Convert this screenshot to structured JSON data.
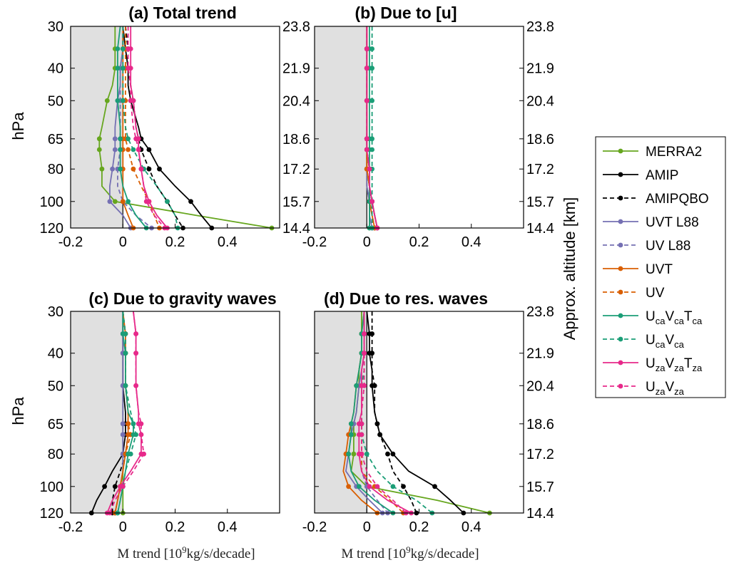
{
  "colors": {
    "MERRA2": "#66a61e",
    "AMIP": "#000000",
    "AMIPQBO": "#000000",
    "UVT L88": "#7570b3",
    "UV L88": "#7570b3",
    "UVT": "#d95f02",
    "UV": "#d95f02",
    "UcaVcaTca": "#1b9e77",
    "UcaVca": "#1b9e77",
    "UzaVzaTza": "#e7298a",
    "UzaVza": "#e7298a",
    "shade": "#e0e0e0"
  },
  "legend": [
    {
      "key": "MERRA2",
      "label": "MERRA2",
      "dashed": false
    },
    {
      "key": "AMIP",
      "label": "AMIP",
      "dashed": false
    },
    {
      "key": "AMIPQBO",
      "label": "AMIPQBO",
      "dashed": true
    },
    {
      "key": "UVT L88",
      "label": "UVT L88",
      "dashed": false
    },
    {
      "key": "UV L88",
      "label": "UV L88",
      "dashed": true
    },
    {
      "key": "UVT",
      "label": "UVT",
      "dashed": false
    },
    {
      "key": "UV",
      "label": "UV",
      "dashed": true
    },
    {
      "key": "UcaVcaTca",
      "label": "U",
      "sub": [
        [
          "ca",
          "V"
        ],
        [
          "ca",
          "T"
        ],
        [
          "ca",
          ""
        ]
      ],
      "dashed": false
    },
    {
      "key": "UcaVca",
      "label": "U",
      "sub": [
        [
          "ca",
          "V"
        ],
        [
          "ca",
          ""
        ]
      ],
      "dashed": true
    },
    {
      "key": "UzaVzaTza",
      "label": "U",
      "sub": [
        [
          "za",
          "V"
        ],
        [
          "za",
          "T"
        ],
        [
          "za",
          ""
        ]
      ],
      "dashed": false
    },
    {
      "key": "UzaVza",
      "label": "U",
      "sub": [
        [
          "za",
          "V"
        ],
        [
          "za",
          ""
        ]
      ],
      "dashed": true
    }
  ],
  "right_axis_label": "Approx. altitude [km]",
  "left_axis_label": "hPa",
  "xlabel_pre": "M trend [10",
  "xlabel_sup": "9",
  "xlabel_post": "kg/s/decade]",
  "chart_data": [
    {
      "type": "line",
      "title": "(a) Total trend",
      "xlim": [
        -0.2,
        0.6
      ],
      "ylim": [
        30,
        120
      ],
      "xticks": [
        "-0.2",
        "0",
        "0.2",
        "0.4"
      ],
      "yticks": [
        "30",
        "40",
        "50",
        "65",
        "80",
        "100",
        "120"
      ],
      "alt_ticks": [
        "23.8",
        "21.9",
        "20.4",
        "18.6",
        "17.2",
        "15.7",
        "14.4"
      ],
      "pressure": [
        30,
        35,
        40,
        45,
        50,
        60,
        65,
        70,
        80,
        90,
        100,
        110,
        120
      ],
      "series": [
        {
          "name": "MERRA2",
          "values": [
            -0.03,
            -0.03,
            -0.03,
            -0.04,
            -0.06,
            -0.08,
            -0.09,
            -0.09,
            -0.08,
            -0.08,
            -0.03,
            0.28,
            0.57
          ]
        },
        {
          "name": "AMIP",
          "values": [
            0.0,
            0.01,
            0.02,
            0.02,
            0.03,
            0.06,
            0.07,
            0.1,
            0.14,
            0.2,
            0.26,
            0.3,
            0.34
          ]
        },
        {
          "name": "AMIPQBO",
          "values": [
            0.01,
            0.02,
            0.02,
            0.03,
            0.04,
            0.05,
            0.06,
            0.07,
            0.1,
            0.13,
            0.17,
            0.2,
            0.23
          ]
        },
        {
          "name": "UVT L88",
          "values": [
            0.0,
            0.0,
            -0.01,
            -0.01,
            -0.02,
            -0.03,
            -0.03,
            -0.03,
            -0.04,
            -0.05,
            -0.05,
            0.0,
            0.03
          ]
        },
        {
          "name": "UV L88",
          "values": [
            0.0,
            0.0,
            -0.01,
            -0.01,
            -0.01,
            -0.01,
            -0.01,
            -0.01,
            -0.02,
            -0.02,
            0.0,
            0.05,
            0.11
          ]
        },
        {
          "name": "UVT",
          "values": [
            0.0,
            0.0,
            0.0,
            0.0,
            0.0,
            0.0,
            0.0,
            0.0,
            0.0,
            0.0,
            0.0,
            0.02,
            0.04
          ]
        },
        {
          "name": "UV",
          "values": [
            0.01,
            0.01,
            0.01,
            0.01,
            0.01,
            0.01,
            0.01,
            0.02,
            0.04,
            0.07,
            0.1,
            0.12,
            0.14
          ]
        },
        {
          "name": "UcaVcaTca",
          "values": [
            -0.01,
            -0.02,
            -0.02,
            -0.02,
            -0.02,
            -0.01,
            -0.01,
            -0.01,
            -0.01,
            0.0,
            0.02,
            0.05,
            0.09
          ]
        },
        {
          "name": "UcaVca",
          "values": [
            0.0,
            0.0,
            0.0,
            0.0,
            0.0,
            0.01,
            0.02,
            0.04,
            0.08,
            0.13,
            0.17,
            0.2,
            0.21
          ]
        },
        {
          "name": "UzaVzaTza",
          "values": [
            0.03,
            0.03,
            0.03,
            0.03,
            0.04,
            0.05,
            0.06,
            0.06,
            0.07,
            0.08,
            0.1,
            0.13,
            0.17
          ]
        },
        {
          "name": "UzaVza",
          "values": [
            0.02,
            0.02,
            0.02,
            0.03,
            0.03,
            0.04,
            0.05,
            0.06,
            0.07,
            0.08,
            0.09,
            0.12,
            0.16
          ]
        }
      ]
    },
    {
      "type": "line",
      "title": "(b) Due to [u]",
      "xlim": [
        -0.2,
        0.6
      ],
      "ylim": [
        30,
        120
      ],
      "xticks": [
        "-0.2",
        "0",
        "0.2",
        "0.4"
      ],
      "yticks": [
        "30",
        "40",
        "50",
        "65",
        "80",
        "100",
        "120"
      ],
      "alt_ticks": [
        "23.8",
        "21.9",
        "20.4",
        "18.6",
        "17.2",
        "15.7",
        "14.4"
      ],
      "pressure": [
        30,
        35,
        40,
        45,
        50,
        60,
        65,
        70,
        80,
        90,
        100,
        110,
        120
      ],
      "series": [
        {
          "name": "MERRA2",
          "values": [
            0.0,
            0.0,
            0.0,
            0.0,
            0.0,
            0.0,
            0.0,
            0.0,
            0.0,
            0.0,
            0.01,
            0.01,
            0.01
          ]
        },
        {
          "name": "AMIP",
          "values": [
            0.0,
            0.0,
            0.0,
            0.0,
            0.0,
            0.0,
            0.0,
            0.0,
            0.0,
            0.01,
            0.02,
            0.03,
            0.04
          ]
        },
        {
          "name": "AMIPQBO",
          "values": [
            0.0,
            0.0,
            0.0,
            0.0,
            0.0,
            0.0,
            0.0,
            0.0,
            0.01,
            0.01,
            0.02,
            0.02,
            0.03
          ]
        },
        {
          "name": "UVT L88",
          "values": [
            0.0,
            0.0,
            0.0,
            0.0,
            0.0,
            0.0,
            0.0,
            0.0,
            0.0,
            0.0,
            0.01,
            0.01,
            0.02
          ]
        },
        {
          "name": "UV L88",
          "values": [
            0.0,
            0.0,
            0.0,
            0.0,
            0.0,
            0.0,
            0.0,
            0.0,
            0.0,
            0.0,
            0.01,
            0.01,
            0.02
          ]
        },
        {
          "name": "UVT",
          "values": [
            0.0,
            0.0,
            0.0,
            0.0,
            0.0,
            0.0,
            0.0,
            0.0,
            0.0,
            0.01,
            0.01,
            0.02,
            0.03
          ]
        },
        {
          "name": "UV",
          "values": [
            0.0,
            0.0,
            0.0,
            0.0,
            0.0,
            0.0,
            0.0,
            0.0,
            0.0,
            0.01,
            0.01,
            0.02,
            0.03
          ]
        },
        {
          "name": "UcaVcaTca",
          "values": [
            0.01,
            0.01,
            0.01,
            0.01,
            0.01,
            0.01,
            0.01,
            0.01,
            0.01,
            0.01,
            0.01,
            0.01,
            0.01
          ]
        },
        {
          "name": "UcaVca",
          "values": [
            0.02,
            0.02,
            0.02,
            0.02,
            0.02,
            0.02,
            0.02,
            0.02,
            0.02,
            0.02,
            0.02,
            0.02,
            0.02
          ]
        },
        {
          "name": "UzaVzaTza",
          "values": [
            0.0,
            0.0,
            0.0,
            0.0,
            0.0,
            0.0,
            0.0,
            0.0,
            0.01,
            0.01,
            0.02,
            0.03,
            0.04
          ]
        },
        {
          "name": "UzaVza",
          "values": [
            0.0,
            0.0,
            0.0,
            0.0,
            0.0,
            0.0,
            0.0,
            0.0,
            0.01,
            0.01,
            0.02,
            0.03,
            0.04
          ]
        }
      ]
    },
    {
      "type": "line",
      "title": "(c) Due to gravity waves",
      "xlim": [
        -0.2,
        0.6
      ],
      "ylim": [
        30,
        120
      ],
      "xticks": [
        "-0.2",
        "0",
        "0.2",
        "0.4"
      ],
      "yticks": [
        "30",
        "40",
        "50",
        "65",
        "80",
        "100",
        "120"
      ],
      "alt_ticks": [],
      "pressure": [
        30,
        35,
        40,
        45,
        50,
        60,
        65,
        70,
        80,
        90,
        100,
        110,
        120
      ],
      "series": [
        {
          "name": "MERRA2",
          "values": [
            0.0,
            0.0,
            0.0,
            0.0,
            0.0,
            0.0,
            0.0,
            0.0,
            0.0,
            0.0,
            0.0,
            0.0,
            0.0
          ]
        },
        {
          "name": "AMIP",
          "values": [
            0.0,
            0.0,
            0.0,
            0.0,
            0.0,
            0.01,
            0.01,
            0.01,
            0.0,
            -0.04,
            -0.07,
            -0.1,
            -0.12
          ]
        },
        {
          "name": "AMIPQBO",
          "values": [
            0.0,
            0.01,
            0.01,
            0.01,
            0.01,
            0.02,
            0.02,
            0.02,
            0.01,
            -0.01,
            -0.03,
            -0.04,
            -0.04
          ]
        },
        {
          "name": "UVT L88",
          "values": [
            0.0,
            0.0,
            0.0,
            0.0,
            0.0,
            0.0,
            0.0,
            0.0,
            0.0,
            0.0,
            -0.01,
            -0.02,
            -0.03
          ]
        },
        {
          "name": "UV L88",
          "values": [
            0.0,
            0.0,
            0.0,
            0.0,
            0.0,
            0.0,
            0.0,
            0.0,
            0.0,
            0.0,
            -0.01,
            -0.02,
            -0.03
          ]
        },
        {
          "name": "UVT",
          "values": [
            0.0,
            0.01,
            0.01,
            0.01,
            0.01,
            0.02,
            0.02,
            0.02,
            0.01,
            0.0,
            -0.01,
            -0.02,
            -0.03
          ]
        },
        {
          "name": "UV",
          "values": [
            0.0,
            0.01,
            0.01,
            0.01,
            0.01,
            0.02,
            0.02,
            0.03,
            0.01,
            0.0,
            -0.01,
            -0.02,
            -0.03
          ]
        },
        {
          "name": "UcaVcaTca",
          "values": [
            0.0,
            0.0,
            0.01,
            0.01,
            0.01,
            0.02,
            0.04,
            0.04,
            0.02,
            0.01,
            0.0,
            -0.01,
            -0.02
          ]
        },
        {
          "name": "UcaVca",
          "values": [
            0.0,
            0.01,
            0.01,
            0.01,
            0.01,
            0.03,
            0.04,
            0.05,
            0.03,
            0.01,
            0.0,
            -0.01,
            -0.02
          ]
        },
        {
          "name": "UzaVzaTza",
          "values": [
            0.04,
            0.05,
            0.05,
            0.05,
            0.05,
            0.06,
            0.06,
            0.07,
            0.07,
            0.03,
            -0.01,
            -0.04,
            -0.06
          ]
        },
        {
          "name": "UzaVza",
          "values": [
            0.04,
            0.05,
            0.05,
            0.05,
            0.05,
            0.06,
            0.07,
            0.07,
            0.08,
            0.04,
            0.0,
            -0.03,
            -0.05
          ]
        }
      ]
    },
    {
      "type": "line",
      "title": "(d) Due to res. waves",
      "xlim": [
        -0.2,
        0.6
      ],
      "ylim": [
        30,
        120
      ],
      "xticks": [
        "-0.2",
        "0",
        "0.2",
        "0.4"
      ],
      "yticks": [
        "30",
        "40",
        "50",
        "65",
        "80",
        "100",
        "120"
      ],
      "alt_ticks": [
        "23.8",
        "21.9",
        "20.4",
        "18.6",
        "17.2",
        "15.7",
        "14.4"
      ],
      "pressure": [
        30,
        35,
        40,
        45,
        50,
        60,
        65,
        70,
        80,
        90,
        100,
        110,
        120
      ],
      "series": [
        {
          "name": "MERRA2",
          "values": [
            -0.02,
            -0.02,
            -0.02,
            -0.03,
            -0.03,
            -0.04,
            -0.05,
            -0.05,
            -0.05,
            -0.06,
            0.0,
            0.27,
            0.47
          ]
        },
        {
          "name": "AMIP",
          "values": [
            0.0,
            0.01,
            0.01,
            0.02,
            0.02,
            0.03,
            0.04,
            0.05,
            0.1,
            0.16,
            0.26,
            0.32,
            0.37
          ]
        },
        {
          "name": "AMIPQBO",
          "values": [
            0.02,
            0.02,
            0.02,
            0.02,
            0.03,
            0.03,
            0.04,
            0.05,
            0.08,
            0.1,
            0.14,
            0.17,
            0.19
          ]
        },
        {
          "name": "UVT L88",
          "values": [
            -0.01,
            -0.01,
            -0.01,
            -0.02,
            -0.03,
            -0.04,
            -0.05,
            -0.06,
            -0.07,
            -0.08,
            -0.04,
            0.01,
            0.06
          ]
        },
        {
          "name": "UV L88",
          "values": [
            -0.01,
            -0.01,
            -0.01,
            -0.01,
            -0.02,
            -0.02,
            -0.02,
            -0.02,
            -0.02,
            -0.02,
            0.0,
            0.04,
            0.08
          ]
        },
        {
          "name": "UVT",
          "values": [
            -0.01,
            -0.02,
            -0.02,
            -0.03,
            -0.04,
            -0.05,
            -0.06,
            -0.07,
            -0.08,
            -0.09,
            -0.07,
            -0.02,
            0.04
          ]
        },
        {
          "name": "UV",
          "values": [
            -0.01,
            -0.01,
            -0.01,
            -0.01,
            -0.02,
            -0.02,
            -0.02,
            -0.02,
            -0.02,
            -0.02,
            0.03,
            0.09,
            0.14
          ]
        },
        {
          "name": "UcaVcaTca",
          "values": [
            -0.01,
            -0.02,
            -0.02,
            -0.03,
            -0.04,
            -0.05,
            -0.06,
            -0.06,
            -0.07,
            -0.06,
            -0.03,
            0.03,
            0.1
          ]
        },
        {
          "name": "UcaVca",
          "values": [
            -0.01,
            -0.01,
            -0.01,
            -0.01,
            -0.02,
            -0.02,
            -0.02,
            -0.02,
            0.0,
            0.04,
            0.1,
            0.19,
            0.25
          ]
        },
        {
          "name": "UzaVzaTza",
          "values": [
            -0.01,
            -0.01,
            -0.01,
            -0.02,
            -0.02,
            -0.02,
            -0.03,
            -0.03,
            -0.03,
            -0.02,
            0.01,
            0.08,
            0.17
          ]
        },
        {
          "name": "UzaVza",
          "values": [
            -0.01,
            -0.01,
            -0.01,
            -0.01,
            -0.01,
            -0.02,
            -0.02,
            -0.02,
            -0.02,
            0.0,
            0.04,
            0.1,
            0.15
          ]
        }
      ]
    }
  ]
}
